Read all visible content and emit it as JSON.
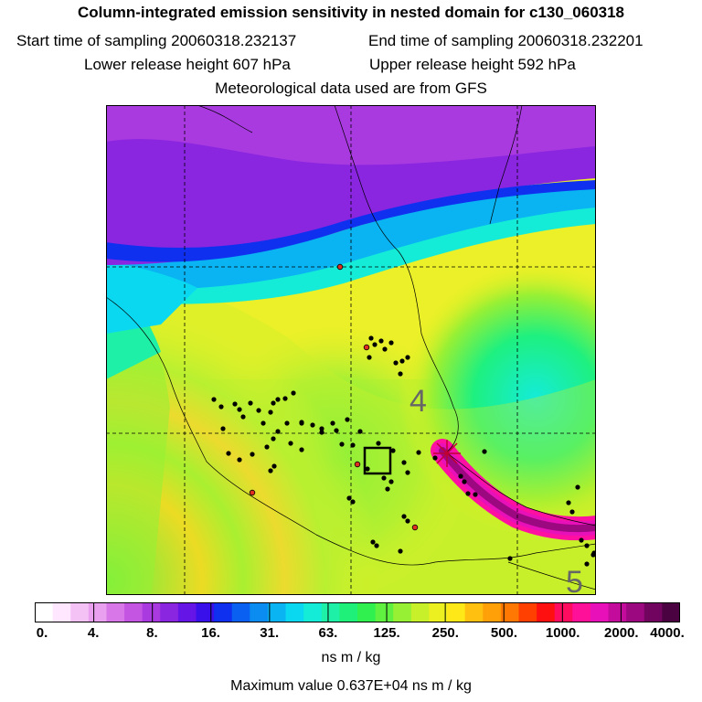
{
  "header": {
    "title": "Column-integrated emission sensitivity in nested domain for c130_060318",
    "start_label": "Start time of sampling 20060318.232137",
    "end_label": "End time of sampling 20060318.232201",
    "lower_label": "Lower release height  607 hPa",
    "upper_label": "Upper release height  592 hPa",
    "met_label": "Meteorological data used are from GFS"
  },
  "map": {
    "labels": [
      {
        "text": "4"
      },
      {
        "text": "5"
      }
    ]
  },
  "colorbar": {
    "ticks": [
      "0.",
      "4.",
      "8.",
      "16.",
      "31.",
      "63.",
      "125.",
      "250.",
      "500.",
      "1000.",
      "2000.",
      "4000."
    ],
    "colors": [
      "#ffffff",
      "#ffe8ff",
      "#f5c2f5",
      "#e9a0ee",
      "#d878e8",
      "#c455e2",
      "#a93ae0",
      "#8a25e0",
      "#6515e6",
      "#3a10ea",
      "#1030f0",
      "#0a60f0",
      "#0a8cf0",
      "#0ab4f2",
      "#0ad8f0",
      "#14ecd8",
      "#1ef0a8",
      "#1ef07a",
      "#30f050",
      "#60f040",
      "#98f034",
      "#c8f02a",
      "#ecf020",
      "#ffe818",
      "#ffc010",
      "#ffa008",
      "#ff7804",
      "#ff4000",
      "#ff1010",
      "#ff0c60",
      "#ff1098",
      "#e810b8",
      "#c40c9c",
      "#9c0880",
      "#70045e",
      "#4a0240"
    ],
    "units": "ns m / kg",
    "max_label": "Maximum value  0.637E+04 ns m / kg"
  },
  "colors": {
    "field_low": "#7a1ef2",
    "field_mid": "#f0f030",
    "plume": "#e8108e",
    "release_point": "#ff2020"
  }
}
